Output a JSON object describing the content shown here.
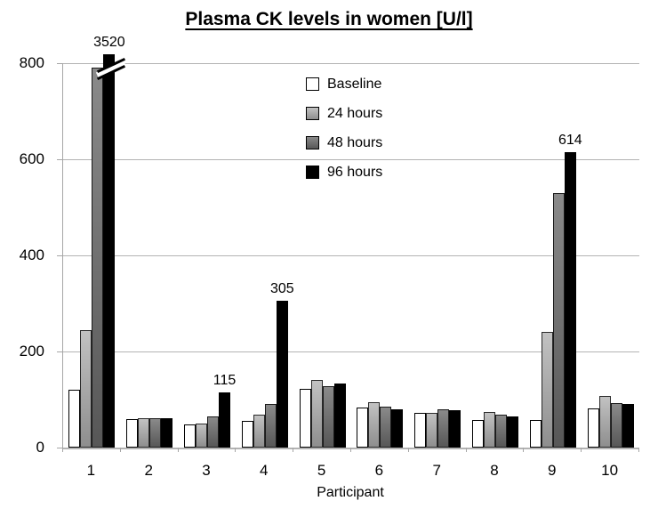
{
  "chart_data": {
    "type": "bar",
    "title": "Plasma CK levels in women [U/l]",
    "xlabel": "Participant",
    "ylabel": "",
    "categories": [
      "1",
      "2",
      "3",
      "4",
      "5",
      "6",
      "7",
      "8",
      "9",
      "10"
    ],
    "series": [
      {
        "name": "Baseline",
        "color_top": "#ffffff",
        "color_bottom": "#ffffff",
        "border": "#000000",
        "values": [
          120,
          60,
          48,
          55,
          122,
          84,
          72,
          58,
          58,
          82
        ]
      },
      {
        "name": "24 hours",
        "color_top": "#c2c2c2",
        "color_bottom": "#8e8e8e",
        "border": "#2b2b2b",
        "values": [
          245,
          62,
          50,
          68,
          140,
          94,
          72,
          75,
          240,
          108
        ]
      },
      {
        "name": "48 hours",
        "color_top": "#8a8a8a",
        "color_bottom": "#575757",
        "border": "#1a1a1a",
        "values": [
          790,
          62,
          65,
          90,
          127,
          85,
          80,
          68,
          530,
          93
        ]
      },
      {
        "name": "96 hours",
        "color_top": "#000000",
        "color_bottom": "#000000",
        "border": "#000000",
        "values": [
          3520,
          62,
          115,
          305,
          134,
          80,
          78,
          65,
          614,
          91
        ]
      }
    ],
    "annotations": [
      {
        "category": "1",
        "series": "96 hours",
        "text": "3520"
      },
      {
        "category": "3",
        "series": "96 hours",
        "text": "115"
      },
      {
        "category": "4",
        "series": "96 hours",
        "text": "305"
      },
      {
        "category": "9",
        "series": "96 hours",
        "text": "614"
      }
    ],
    "clipped_bars": [
      {
        "category": "1",
        "series": "96 hours"
      }
    ],
    "ylim": [
      0,
      800
    ],
    "yticks": [
      0,
      200,
      400,
      600,
      800
    ],
    "grid": true,
    "legend_position": "upper center",
    "style": {
      "background": "#ffffff",
      "grid_color": "#b3b3b3",
      "axis_color": "#a6a6a6",
      "text_color": "#000000"
    }
  }
}
